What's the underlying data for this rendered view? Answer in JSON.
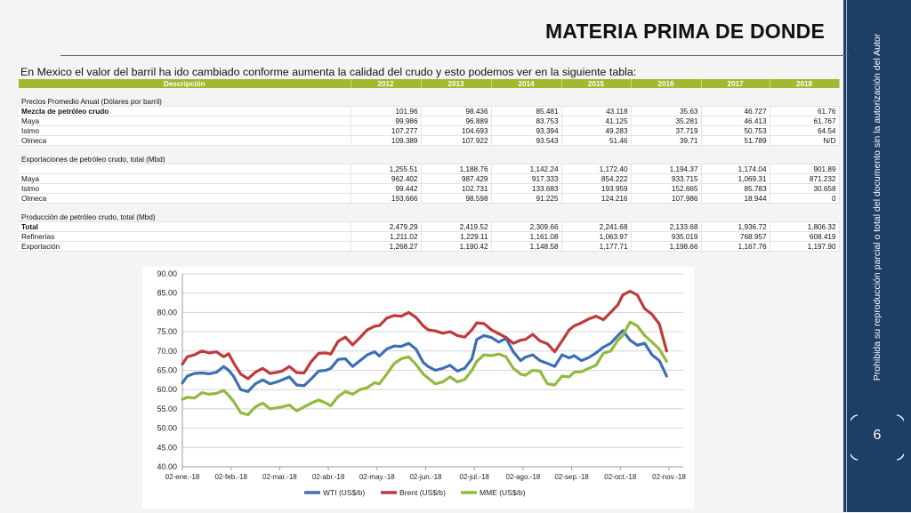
{
  "slide": {
    "title": "MATERIA PRIMA DE DONDE",
    "side_note": "Prohibida su reproducción parcial o total del documento sin la autorización del Autor",
    "page_number": "6",
    "intro": "En Mexico el valor del barril ha ido cambiado conforme aumenta la calidad del crudo y esto podemos ver en la siguiente tabla:"
  },
  "colors": {
    "sidebar": "#1d3f66",
    "header_green": "#a2b82f",
    "wti": "#3e6fb3",
    "brent": "#c0393b",
    "mme": "#93b93d"
  },
  "table": {
    "headers": [
      "Descripción",
      "2012",
      "2013",
      "2014",
      "2015",
      "2016",
      "2017",
      "2018"
    ],
    "rows": [
      {
        "kind": "gap",
        "cells": [
          "",
          "",
          "",
          "",
          "",
          "",
          "",
          ""
        ]
      },
      {
        "kind": "section",
        "cells": [
          "Precios Promedio Anual (Dólares por barril)",
          "",
          "",
          "",
          "",
          "",
          "",
          ""
        ]
      },
      {
        "kind": "data",
        "bold": true,
        "cells": [
          "Mezcla de petróleo crudo",
          "101.96",
          "98.436",
          "85.481",
          "43.118",
          "35.63",
          "46.727",
          "61.76"
        ]
      },
      {
        "kind": "data",
        "cells": [
          "Maya",
          "99.986",
          "96.889",
          "83.753",
          "41.125",
          "35.281",
          "46.413",
          "61.767"
        ]
      },
      {
        "kind": "data",
        "cells": [
          "Istmo",
          "107.277",
          "104.693",
          "93.394",
          "49.283",
          "37.719",
          "50.753",
          "64.54"
        ]
      },
      {
        "kind": "data",
        "cells": [
          "Olmeca",
          "109.389",
          "107.922",
          "93.543",
          "51.46",
          "39.71",
          "51.789",
          "N/D"
        ]
      },
      {
        "kind": "gap",
        "cells": [
          "",
          "",
          "",
          "",
          "",
          "",
          "",
          ""
        ]
      },
      {
        "kind": "section",
        "cells": [
          "Exportaciones de petróleo crudo, total (Mbd)",
          "",
          "",
          "",
          "",
          "",
          "",
          ""
        ]
      },
      {
        "kind": "data",
        "cells": [
          "",
          "1,255.51",
          "1,188.76",
          "1,142.24",
          "1,172.40",
          "1,194.37",
          "1,174.04",
          "901.89"
        ]
      },
      {
        "kind": "data",
        "cells": [
          "Maya",
          "962.402",
          "987.429",
          "917.333",
          "854.222",
          "933.715",
          "1,069.31",
          "871.232"
        ]
      },
      {
        "kind": "data",
        "cells": [
          "Istmo",
          "99.442",
          "102.731",
          "133.683",
          "193.959",
          "152.665",
          "85.783",
          "30.658"
        ]
      },
      {
        "kind": "data",
        "cells": [
          "Olmeca",
          "193.666",
          "98.598",
          "91.225",
          "124.216",
          "107.986",
          "18.944",
          "0"
        ]
      },
      {
        "kind": "gap",
        "cells": [
          "",
          "",
          "",
          "",
          "",
          "",
          "",
          ""
        ]
      },
      {
        "kind": "section",
        "cells": [
          "Producción de petróleo crudo, total (Mbd)",
          "",
          "",
          "",
          "",
          "",
          "",
          ""
        ]
      },
      {
        "kind": "data",
        "bold": true,
        "cells": [
          "Total",
          "2,479.29",
          "2,419.52",
          "2,309.66",
          "2,241.68",
          "2,133.68",
          "1,936.72",
          "1,806.32"
        ]
      },
      {
        "kind": "data",
        "cells": [
          "Refinerías",
          "1,211.02",
          "1,229.11",
          "1,161.08",
          "1,063.97",
          "935.019",
          "768.957",
          "608.419"
        ]
      },
      {
        "kind": "data",
        "cells": [
          "Exportación",
          "1,268.27",
          "1,190.42",
          "1,148.58",
          "1,177.71",
          "1,198.66",
          "1,167.76",
          "1,197.90"
        ]
      }
    ]
  },
  "chart_data": {
    "type": "line",
    "ylim": [
      40,
      90
    ],
    "y_ticks": [
      "90.00",
      "85.00",
      "80.00",
      "75.00",
      "70.00",
      "65.00",
      "60.00",
      "55.00",
      "50.00",
      "45.00",
      "40.00"
    ],
    "x_ticks": [
      "02-ene.-18",
      "02-feb.-18",
      "02-mar.-18",
      "02-abr.-18",
      "02-may.-18",
      "02-jun.-18",
      "02-jul.-18",
      "02-ago.-18",
      "02-sep.-18",
      "02-oct.-18",
      "02-nov.-18"
    ],
    "x_range": [
      0,
      10
    ],
    "grid": true,
    "legend_position": "bottom",
    "series": [
      {
        "name": "WTI (US$/b)",
        "color": "#3e6fb3",
        "points": [
          [
            0,
            61.7
          ],
          [
            0.1,
            63.5
          ],
          [
            0.25,
            64.2
          ],
          [
            0.4,
            64.3
          ],
          [
            0.55,
            64.1
          ],
          [
            0.7,
            64.5
          ],
          [
            0.85,
            66
          ],
          [
            0.95,
            65
          ],
          [
            1.05,
            63.5
          ],
          [
            1.2,
            60
          ],
          [
            1.35,
            59.5
          ],
          [
            1.5,
            61.5
          ],
          [
            1.65,
            62.5
          ],
          [
            1.8,
            61.5
          ],
          [
            1.95,
            62
          ],
          [
            2.05,
            62.5
          ],
          [
            2.2,
            63.3
          ],
          [
            2.35,
            61.2
          ],
          [
            2.5,
            61
          ],
          [
            2.65,
            62.8
          ],
          [
            2.8,
            64.8
          ],
          [
            2.95,
            65
          ],
          [
            3.05,
            65.5
          ],
          [
            3.2,
            67.8
          ],
          [
            3.35,
            68
          ],
          [
            3.5,
            66
          ],
          [
            3.65,
            67.5
          ],
          [
            3.8,
            69
          ],
          [
            3.95,
            69.8
          ],
          [
            4.05,
            68.7
          ],
          [
            4.2,
            70.5
          ],
          [
            4.35,
            71.3
          ],
          [
            4.5,
            71.2
          ],
          [
            4.65,
            72
          ],
          [
            4.8,
            70.5
          ],
          [
            4.95,
            67
          ],
          [
            5.05,
            66
          ],
          [
            5.2,
            65
          ],
          [
            5.35,
            65.5
          ],
          [
            5.5,
            66.3
          ],
          [
            5.65,
            64.8
          ],
          [
            5.8,
            65.5
          ],
          [
            5.95,
            68
          ],
          [
            6.05,
            73
          ],
          [
            6.2,
            74
          ],
          [
            6.35,
            73.5
          ],
          [
            6.5,
            72.3
          ],
          [
            6.65,
            73.3
          ],
          [
            6.8,
            69.8
          ],
          [
            6.95,
            67.5
          ],
          [
            7.05,
            68.4
          ],
          [
            7.2,
            69
          ],
          [
            7.35,
            67.5
          ],
          [
            7.5,
            66.8
          ],
          [
            7.65,
            66
          ],
          [
            7.8,
            69
          ],
          [
            7.95,
            68.2
          ],
          [
            8.05,
            68.8
          ],
          [
            8.2,
            67.5
          ],
          [
            8.35,
            68.3
          ],
          [
            8.5,
            69.5
          ],
          [
            8.65,
            71
          ],
          [
            8.8,
            72
          ],
          [
            8.95,
            74
          ],
          [
            9.05,
            75.3
          ],
          [
            9.2,
            72.8
          ],
          [
            9.35,
            71.5
          ],
          [
            9.5,
            72
          ],
          [
            9.65,
            69
          ],
          [
            9.8,
            67.5
          ],
          [
            9.95,
            63.5
          ]
        ]
      },
      {
        "name": "Brent (US$/b)",
        "color": "#c0393b",
        "points": [
          [
            0,
            66.6
          ],
          [
            0.1,
            68.5
          ],
          [
            0.25,
            69
          ],
          [
            0.4,
            70
          ],
          [
            0.55,
            69.5
          ],
          [
            0.7,
            69.8
          ],
          [
            0.85,
            68.5
          ],
          [
            0.95,
            69.3
          ],
          [
            1.05,
            67
          ],
          [
            1.2,
            64
          ],
          [
            1.35,
            62.8
          ],
          [
            1.5,
            64.5
          ],
          [
            1.65,
            65.5
          ],
          [
            1.8,
            64.2
          ],
          [
            1.95,
            64.5
          ],
          [
            2.05,
            64.8
          ],
          [
            2.2,
            66
          ],
          [
            2.35,
            64.4
          ],
          [
            2.5,
            64.3
          ],
          [
            2.65,
            67.3
          ],
          [
            2.8,
            69.4
          ],
          [
            2.95,
            69.5
          ],
          [
            3.05,
            69.2
          ],
          [
            3.2,
            72.5
          ],
          [
            3.35,
            73.6
          ],
          [
            3.5,
            71.6
          ],
          [
            3.65,
            73.5
          ],
          [
            3.8,
            75.5
          ],
          [
            3.95,
            76.4
          ],
          [
            4.05,
            76.6
          ],
          [
            4.2,
            78.5
          ],
          [
            4.35,
            79.2
          ],
          [
            4.5,
            79
          ],
          [
            4.65,
            80
          ],
          [
            4.8,
            78.7
          ],
          [
            4.95,
            76.5
          ],
          [
            5.05,
            75.5
          ],
          [
            5.2,
            75.2
          ],
          [
            5.35,
            74.6
          ],
          [
            5.5,
            75
          ],
          [
            5.65,
            74
          ],
          [
            5.8,
            73.6
          ],
          [
            5.95,
            75.5
          ],
          [
            6.05,
            77.3
          ],
          [
            6.2,
            77.1
          ],
          [
            6.35,
            75.5
          ],
          [
            6.5,
            74.5
          ],
          [
            6.65,
            73.5
          ],
          [
            6.8,
            72
          ],
          [
            6.95,
            72.8
          ],
          [
            7.05,
            73
          ],
          [
            7.2,
            74.3
          ],
          [
            7.35,
            72.6
          ],
          [
            7.5,
            71.9
          ],
          [
            7.65,
            69.8
          ],
          [
            7.8,
            72.6
          ],
          [
            7.95,
            75.5
          ],
          [
            8.05,
            76.5
          ],
          [
            8.2,
            77.3
          ],
          [
            8.35,
            78.3
          ],
          [
            8.5,
            79
          ],
          [
            8.65,
            78.1
          ],
          [
            8.8,
            80
          ],
          [
            8.95,
            82
          ],
          [
            9.05,
            84.5
          ],
          [
            9.2,
            85.5
          ],
          [
            9.35,
            84.5
          ],
          [
            9.5,
            81
          ],
          [
            9.65,
            79.5
          ],
          [
            9.8,
            77
          ],
          [
            9.95,
            70
          ]
        ]
      },
      {
        "name": "MME (US$/b)",
        "color": "#93b93d",
        "points": [
          [
            0,
            57.5
          ],
          [
            0.1,
            58
          ],
          [
            0.25,
            57.8
          ],
          [
            0.4,
            59.2
          ],
          [
            0.55,
            58.8
          ],
          [
            0.7,
            59
          ],
          [
            0.85,
            59.8
          ],
          [
            0.95,
            58.5
          ],
          [
            1.05,
            57
          ],
          [
            1.2,
            54
          ],
          [
            1.35,
            53.5
          ],
          [
            1.5,
            55.5
          ],
          [
            1.65,
            56.5
          ],
          [
            1.8,
            55
          ],
          [
            1.95,
            55.3
          ],
          [
            2.05,
            55.5
          ],
          [
            2.2,
            56
          ],
          [
            2.35,
            54.5
          ],
          [
            2.5,
            55.5
          ],
          [
            2.65,
            56.5
          ],
          [
            2.8,
            57.3
          ],
          [
            2.95,
            56.5
          ],
          [
            3.05,
            55.8
          ],
          [
            3.2,
            58.2
          ],
          [
            3.35,
            59.5
          ],
          [
            3.5,
            58.8
          ],
          [
            3.65,
            60
          ],
          [
            3.8,
            60.5
          ],
          [
            3.95,
            61.8
          ],
          [
            4.05,
            61.5
          ],
          [
            4.2,
            64
          ],
          [
            4.35,
            66.7
          ],
          [
            4.5,
            68
          ],
          [
            4.65,
            68.5
          ],
          [
            4.8,
            66.5
          ],
          [
            4.95,
            64
          ],
          [
            5.05,
            63
          ],
          [
            5.2,
            61.5
          ],
          [
            5.35,
            62
          ],
          [
            5.5,
            63.3
          ],
          [
            5.65,
            62
          ],
          [
            5.8,
            62.6
          ],
          [
            5.95,
            65
          ],
          [
            6.05,
            67.3
          ],
          [
            6.2,
            69
          ],
          [
            6.35,
            68.8
          ],
          [
            6.5,
            69.2
          ],
          [
            6.65,
            68.5
          ],
          [
            6.8,
            65.5
          ],
          [
            6.95,
            64
          ],
          [
            7.05,
            63.7
          ],
          [
            7.2,
            65
          ],
          [
            7.35,
            64.8
          ],
          [
            7.5,
            61.5
          ],
          [
            7.65,
            61.2
          ],
          [
            7.8,
            63.5
          ],
          [
            7.95,
            63.3
          ],
          [
            8.05,
            64.5
          ],
          [
            8.2,
            64.6
          ],
          [
            8.35,
            65.5
          ],
          [
            8.5,
            66.3
          ],
          [
            8.65,
            69.4
          ],
          [
            8.8,
            70
          ],
          [
            8.95,
            72.8
          ],
          [
            9.05,
            74
          ],
          [
            9.2,
            77.5
          ],
          [
            9.35,
            76.5
          ],
          [
            9.5,
            74
          ],
          [
            9.65,
            72.3
          ],
          [
            9.8,
            70.5
          ],
          [
            9.95,
            67.3
          ]
        ]
      }
    ]
  }
}
